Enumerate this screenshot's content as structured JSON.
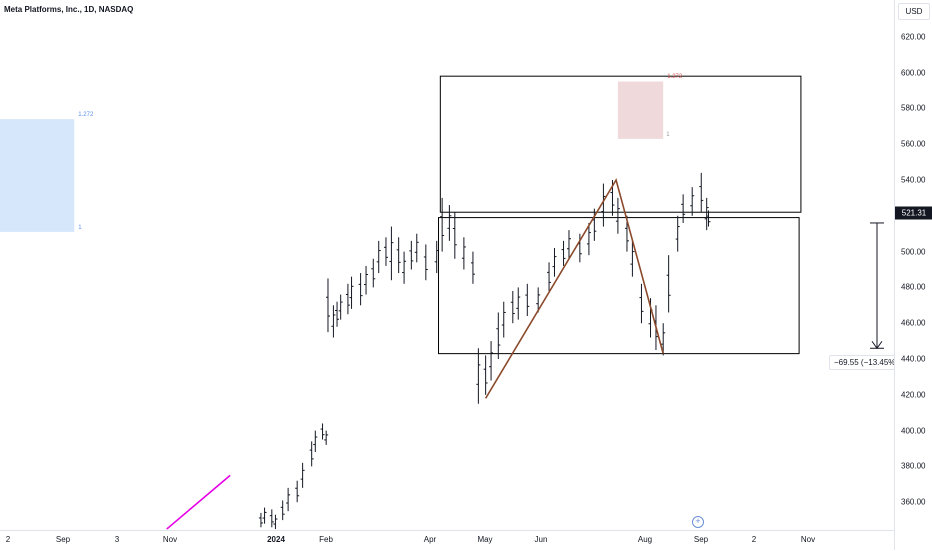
{
  "header": {
    "title": "Meta Platforms, Inc., 1D, NASDAQ"
  },
  "price_scale": {
    "currency": "USD",
    "last_price_label": "521.31",
    "last_price": 521.31
  },
  "measure": {
    "label": "−69.55 (−13.45%)",
    "from": 516,
    "to": 446
  },
  "fib_labels": {
    "left_top": "1.272",
    "left_bottom": "1",
    "right_top": "1.272",
    "right_bottom": "1"
  },
  "colors": {
    "candle": "#131722",
    "trendline": "#8b4a2b",
    "magenta": "#e600e6",
    "box_border": "#000000",
    "fib_blue": "#d6e6fb",
    "fib_blue_text": "#5b8def",
    "fib_red": "#f0d9da",
    "fib_red_text": "#d9534f",
    "last_price_bg": "#131722",
    "add_button": "#6a8fd6"
  },
  "chart_data": {
    "type": "ohlc",
    "title": "Meta Platforms, Inc., 1D, NASDAQ",
    "ylabel": "USD",
    "ylim": [
      345,
      640
    ],
    "ytick_labels": [
      "620.00",
      "600.00",
      "580.00",
      "560.00",
      "540.00",
      "520.00",
      "500.00",
      "480.00",
      "460.00",
      "440.00",
      "420.00",
      "400.00",
      "380.00",
      "360.00"
    ],
    "yticks": [
      620,
      600,
      580,
      560,
      540,
      520,
      500,
      480,
      460,
      440,
      420,
      400,
      380,
      360
    ],
    "xtick_labels": [
      "2",
      "Sep",
      "3",
      "Nov",
      "2024",
      "Feb",
      "Apr",
      "May",
      "Jun",
      "Aug",
      "Sep",
      "2",
      "Nov"
    ],
    "grid": false,
    "series": [
      {
        "points": [
          [
            "2023-12-27",
            346,
            354
          ],
          [
            "2023-12-29",
            348,
            357
          ],
          [
            "2024-01-02",
            346,
            356
          ],
          [
            "2024-01-04",
            345,
            353
          ],
          [
            "2024-01-08",
            350,
            361
          ],
          [
            "2024-01-11",
            355,
            368
          ],
          [
            "2024-01-16",
            360,
            372
          ],
          [
            "2024-01-19",
            368,
            382
          ],
          [
            "2024-01-24",
            380,
            394
          ],
          [
            "2024-01-26",
            388,
            400
          ],
          [
            "2024-01-30",
            395,
            404
          ],
          [
            "2024-02-01",
            392,
            400
          ],
          [
            "2024-02-02",
            455,
            485
          ],
          [
            "2024-02-05",
            452,
            470
          ],
          [
            "2024-02-07",
            458,
            472
          ],
          [
            "2024-02-09",
            462,
            476
          ],
          [
            "2024-02-13",
            465,
            482
          ],
          [
            "2024-02-15",
            468,
            486
          ],
          [
            "2024-02-20",
            470,
            488
          ],
          [
            "2024-02-23",
            476,
            492
          ],
          [
            "2024-02-27",
            480,
            496
          ],
          [
            "2024-03-01",
            488,
            506
          ],
          [
            "2024-03-05",
            492,
            508
          ],
          [
            "2024-03-08",
            484,
            514
          ],
          [
            "2024-03-12",
            488,
            508
          ],
          [
            "2024-03-15",
            482,
            500
          ],
          [
            "2024-03-19",
            490,
            506
          ],
          [
            "2024-03-22",
            494,
            510
          ],
          [
            "2024-03-27",
            484,
            504
          ],
          [
            "2024-04-02",
            488,
            506
          ],
          [
            "2024-04-05",
            500,
            530
          ],
          [
            "2024-04-09",
            506,
            526
          ],
          [
            "2024-04-12",
            496,
            522
          ],
          [
            "2024-04-17",
            490,
            508
          ],
          [
            "2024-04-22",
            482,
            500
          ],
          [
            "2024-04-25",
            415,
            446
          ],
          [
            "2024-04-29",
            420,
            442
          ],
          [
            "2024-05-02",
            428,
            450
          ],
          [
            "2024-05-06",
            440,
            466
          ],
          [
            "2024-05-09",
            452,
            472
          ],
          [
            "2024-05-14",
            460,
            478
          ],
          [
            "2024-05-17",
            462,
            480
          ],
          [
            "2024-05-22",
            464,
            482
          ],
          [
            "2024-05-28",
            466,
            480
          ],
          [
            "2024-06-03",
            478,
            494
          ],
          [
            "2024-06-06",
            486,
            502
          ],
          [
            "2024-06-11",
            492,
            506
          ],
          [
            "2024-06-14",
            496,
            512
          ],
          [
            "2024-06-20",
            494,
            510
          ],
          [
            "2024-06-25",
            498,
            516
          ],
          [
            "2024-06-28",
            506,
            524
          ],
          [
            "2024-07-03",
            514,
            538
          ],
          [
            "2024-07-08",
            520,
            540
          ],
          [
            "2024-07-11",
            510,
            530
          ],
          [
            "2024-07-16",
            500,
            520
          ],
          [
            "2024-07-19",
            486,
            506
          ],
          [
            "2024-07-24",
            460,
            482
          ],
          [
            "2024-07-29",
            452,
            474
          ],
          [
            "2024-08-01",
            445,
            470
          ],
          [
            "2024-08-05",
            442,
            460
          ],
          [
            "2024-08-08",
            466,
            498
          ],
          [
            "2024-08-13",
            500,
            520
          ],
          [
            "2024-08-16",
            516,
            532
          ],
          [
            "2024-08-21",
            520,
            536
          ],
          [
            "2024-08-26",
            522,
            544
          ],
          [
            "2024-08-29",
            512,
            530
          ],
          [
            "2024-08-30",
            514,
            523
          ]
        ]
      }
    ],
    "annotations": {
      "trendline": [
        [
          "2024-04-29",
          418
        ],
        [
          "2024-07-10",
          540
        ],
        [
          "2024-08-05",
          443
        ]
      ],
      "magenta_line": [
        [
          "2023-11-05",
          345
        ],
        [
          "2023-12-10",
          375
        ]
      ],
      "upper_box": {
        "from": "2024-04-04",
        "to": "2024-10-20",
        "top": 598,
        "bottom": 522
      },
      "lower_box": {
        "from": "2024-04-03",
        "to": "2024-10-19",
        "top": 519,
        "bottom": 443
      },
      "fib_left": {
        "from": "2023-07-18",
        "to": "2023-09-15",
        "top": 574,
        "bottom": 511
      },
      "fib_right": {
        "from": "2024-07-11",
        "to": "2024-08-05",
        "top": 595,
        "bottom": 563
      }
    }
  }
}
